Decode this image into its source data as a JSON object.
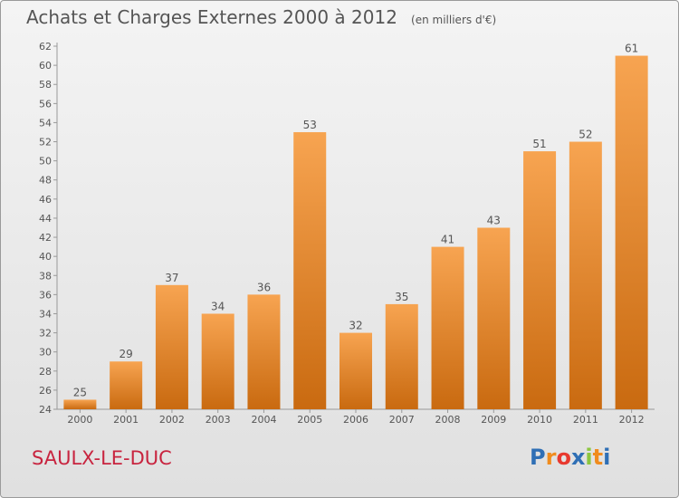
{
  "title": "Achats et Charges Externes 2000 à 2012",
  "unit": "(en milliers d'€)",
  "commune": "SAULX-LE-DUC",
  "logo": {
    "letters": [
      "P",
      "r",
      "o",
      "x",
      "i",
      "t",
      "i"
    ],
    "colors": [
      "#2f6fb5",
      "#f08c1e",
      "#e8392f",
      "#2f6fb5",
      "#8cc63f",
      "#f08c1e",
      "#2f6fb5"
    ]
  },
  "colors": {
    "bar_light": "#f7a451",
    "bar_dark": "#c96a10",
    "axis": "#999999",
    "text": "#555555",
    "brand": "#c8243f"
  },
  "chart_data": {
    "type": "bar",
    "categories": [
      "2000",
      "2001",
      "2002",
      "2003",
      "2004",
      "2005",
      "2006",
      "2007",
      "2008",
      "2009",
      "2010",
      "2011",
      "2012"
    ],
    "values": [
      25,
      29,
      37,
      34,
      36,
      53,
      32,
      35,
      41,
      43,
      51,
      52,
      61
    ],
    "ylim": [
      24,
      62
    ],
    "yticks": [
      24,
      26,
      28,
      30,
      32,
      34,
      36,
      38,
      40,
      42,
      44,
      46,
      48,
      50,
      52,
      54,
      56,
      58,
      60,
      62
    ],
    "grid": false,
    "data_labels": true
  }
}
